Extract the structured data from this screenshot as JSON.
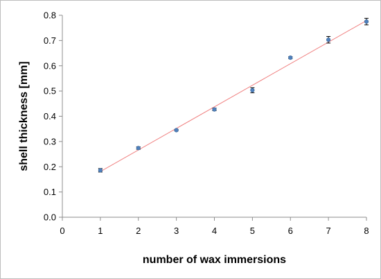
{
  "chart_data": {
    "type": "scatter",
    "title": "",
    "xlabel": "number of wax immersions",
    "ylabel": "shell thickness [mm]",
    "xlim": [
      0,
      8
    ],
    "ylim": [
      0,
      0.8
    ],
    "x_ticks": [
      0,
      1,
      2,
      3,
      4,
      5,
      6,
      7,
      8
    ],
    "y_ticks": [
      0.0,
      0.1,
      0.2,
      0.3,
      0.4,
      0.5,
      0.6,
      0.7,
      0.8
    ],
    "x_tick_labels": [
      "0",
      "1",
      "2",
      "3",
      "4",
      "5",
      "6",
      "7",
      "8"
    ],
    "y_tick_labels": [
      "0.0",
      "0.1",
      "0.2",
      "0.3",
      "0.4",
      "0.5",
      "0.6",
      "0.7",
      "0.8"
    ],
    "grid": false,
    "legend": "none",
    "series": [
      {
        "x": [
          1,
          2,
          3,
          4,
          5,
          6,
          7,
          8
        ],
        "y": [
          0.186,
          0.274,
          0.345,
          0.427,
          0.503,
          0.632,
          0.703,
          0.775
        ],
        "error": [
          0.007,
          0.005,
          0.003,
          0.005,
          0.01,
          0.004,
          0.013,
          0.013
        ],
        "color": "#4f81bd"
      }
    ],
    "trendline": {
      "type": "linear",
      "from": [
        1,
        0.181
      ],
      "to": [
        8,
        0.779
      ],
      "color": "#f08080"
    }
  }
}
